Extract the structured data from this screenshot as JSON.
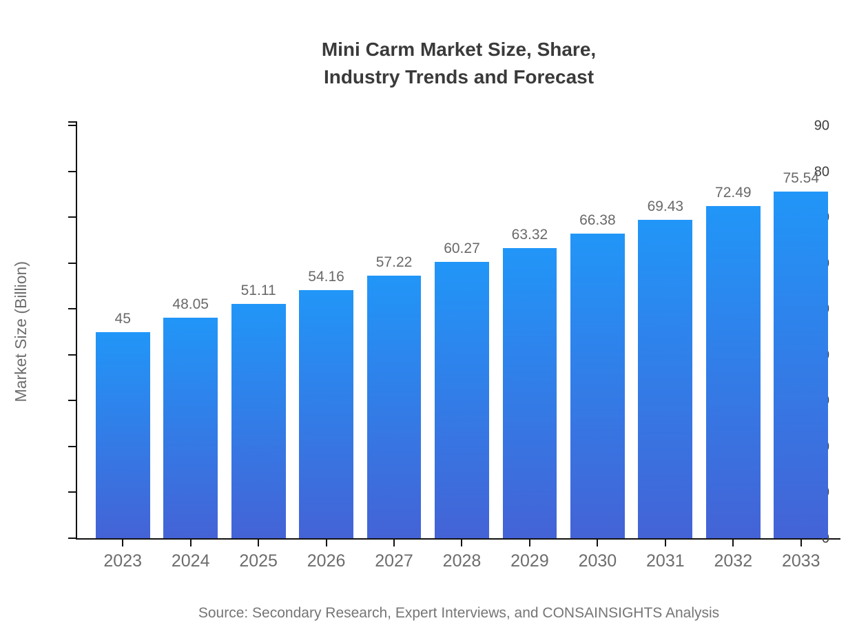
{
  "header": {
    "title_line1": "Mini Carm Market Size, Share,",
    "title_line2": "Industry Trends and Forecast"
  },
  "footer": {
    "source": "Source: Secondary Research, Expert Interviews, and CONSAINSIGHTS Analysis"
  },
  "colors": {
    "bar_gradient_top": "#2196f8",
    "bar_gradient_bottom": "#4463d6",
    "axis": "#111111",
    "title_text": "#3a3a3a",
    "y_tick_text": "#3d3d3d",
    "x_tick_text": "#6d6d6d",
    "value_label_text": "#696969",
    "source_text": "#757575",
    "background": "#ffffff"
  },
  "chart_data": {
    "type": "bar",
    "title": "Mini Carm Market Size, Share, Industry Trends and Forecast",
    "categories": [
      "2023",
      "2024",
      "2025",
      "2026",
      "2027",
      "2028",
      "2029",
      "2030",
      "2031",
      "2032",
      "2033"
    ],
    "values": [
      45,
      48.05,
      51.11,
      54.16,
      57.22,
      60.27,
      63.32,
      66.38,
      69.43,
      72.49,
      75.54
    ],
    "value_labels": [
      "45",
      "48.05",
      "51.11",
      "54.16",
      "57.22",
      "60.27",
      "63.32",
      "66.38",
      "69.43",
      "72.49",
      "75.54"
    ],
    "xlabel": "",
    "ylabel": "Market Size (Billion)",
    "ylim": [
      0,
      90
    ],
    "ytick_step": 10,
    "grid": false,
    "legend": "none",
    "bar_gradient_top": "#2196f8",
    "bar_gradient_bottom": "#4463d6"
  }
}
